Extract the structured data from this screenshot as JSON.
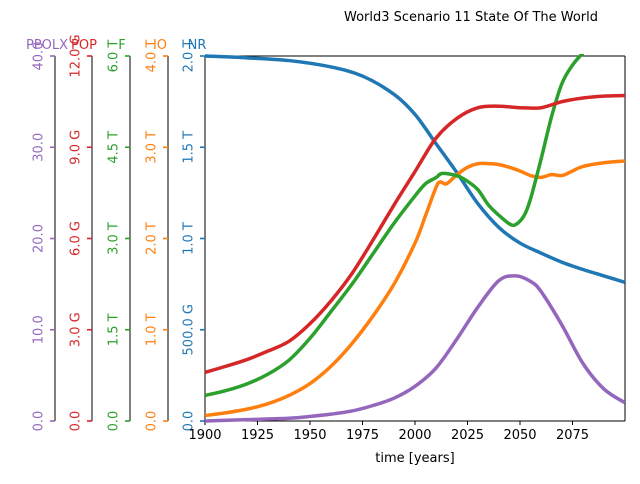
{
  "chart_data": {
    "type": "line",
    "title": "World3 Scenario 11 State Of The World",
    "xlabel": "time [years]",
    "xlim": [
      1900,
      2100
    ],
    "x_ticks": [
      1900,
      1925,
      1950,
      1975,
      2000,
      2025,
      2050,
      2075
    ],
    "x_tick_labels": [
      "1900",
      "1925",
      "1950",
      "1975",
      "2000",
      "2025",
      "2050",
      "2075"
    ],
    "grid": false,
    "legend": "none",
    "axes": [
      {
        "key": "PPOLX",
        "label": "PPOLX",
        "color": "#9467bd",
        "ylim": [
          0,
          40
        ],
        "ticks": [
          0,
          10,
          20,
          30,
          40
        ],
        "tick_labels": [
          "0.0",
          "10.0",
          "20.0",
          "30.0",
          "40.0"
        ]
      },
      {
        "key": "POP",
        "label": "POP",
        "color": "#d62728",
        "ylim": [
          0,
          12
        ],
        "ticks": [
          0,
          3,
          6,
          9,
          12
        ],
        "tick_labels": [
          "0.0",
          "3.0 G",
          "6.0 G",
          "9.0 G",
          "12.0 G"
        ]
      },
      {
        "key": "F",
        "label": "F",
        "color": "#2ca02c",
        "ylim": [
          0,
          6
        ],
        "ticks": [
          0,
          1.5,
          3,
          4.5,
          6
        ],
        "tick_labels": [
          "0.0",
          "1.5 T",
          "3.0 T",
          "4.5 T",
          "6.0 T"
        ]
      },
      {
        "key": "IO",
        "label": "IO",
        "color": "#ff7f0e",
        "ylim": [
          0,
          4
        ],
        "ticks": [
          0,
          1,
          2,
          3,
          4
        ],
        "tick_labels": [
          "0.0",
          "1.0 T",
          "2.0 T",
          "3.0 T",
          "4.0 T"
        ]
      },
      {
        "key": "NR",
        "label": "NR",
        "color": "#1f77b4",
        "ylim": [
          0,
          2
        ],
        "ticks": [
          0,
          0.5,
          1,
          1.5,
          2
        ],
        "tick_labels": [
          "0.0",
          "500.0 G",
          "1.0 T",
          "1.5 T",
          "2.0 T"
        ]
      }
    ],
    "series": [
      {
        "axis": "NR",
        "color": "#1f77b4",
        "x": [
          1900,
          1920,
          1940,
          1960,
          1975,
          1990,
          2000,
          2010,
          2020,
          2030,
          2040,
          2050,
          2060,
          2070,
          2080,
          2090,
          2100
        ],
        "values": [
          2.0,
          1.99,
          1.975,
          1.94,
          1.89,
          1.79,
          1.68,
          1.52,
          1.36,
          1.19,
          1.06,
          0.975,
          0.92,
          0.87,
          0.83,
          0.795,
          0.76
        ]
      },
      {
        "axis": "IO",
        "color": "#ff7f0e",
        "x": [
          1900,
          1910,
          1920,
          1930,
          1940,
          1950,
          1960,
          1970,
          1980,
          1990,
          2000,
          2005,
          2010,
          2012,
          2015,
          2020,
          2025,
          2030,
          2035,
          2040,
          2045,
          2050,
          2055,
          2060,
          2065,
          2070,
          2075,
          2080,
          2090,
          2100
        ],
        "values": [
          0.06,
          0.09,
          0.13,
          0.19,
          0.28,
          0.41,
          0.6,
          0.85,
          1.15,
          1.5,
          1.95,
          2.25,
          2.56,
          2.62,
          2.6,
          2.7,
          2.78,
          2.82,
          2.82,
          2.81,
          2.78,
          2.74,
          2.69,
          2.67,
          2.7,
          2.69,
          2.74,
          2.79,
          2.83,
          2.85
        ]
      },
      {
        "axis": "F",
        "color": "#2ca02c",
        "x": [
          1900,
          1910,
          1920,
          1930,
          1940,
          1950,
          1960,
          1970,
          1980,
          1990,
          2000,
          2005,
          2010,
          2013,
          2020,
          2025,
          2030,
          2035,
          2040,
          2045,
          2048,
          2052,
          2055,
          2060,
          2065,
          2070,
          2075,
          2080,
          2085,
          2090,
          2095,
          2100
        ],
        "values": [
          0.42,
          0.5,
          0.61,
          0.77,
          1.0,
          1.36,
          1.8,
          2.25,
          2.75,
          3.25,
          3.7,
          3.9,
          4.0,
          4.07,
          4.03,
          3.94,
          3.8,
          3.55,
          3.38,
          3.24,
          3.23,
          3.38,
          3.65,
          4.3,
          5.0,
          5.55,
          5.85,
          6.05,
          6.2,
          6.28,
          6.31,
          6.31
        ]
      },
      {
        "axis": "POP",
        "color": "#d62728",
        "x": [
          1900,
          1910,
          1920,
          1930,
          1940,
          1950,
          1960,
          1970,
          1980,
          1990,
          2000,
          2010,
          2020,
          2030,
          2040,
          2050,
          2060,
          2070,
          2080,
          2090,
          2100
        ],
        "values": [
          1.6,
          1.8,
          2.02,
          2.3,
          2.62,
          3.2,
          3.95,
          4.85,
          5.95,
          7.1,
          8.2,
          9.3,
          9.95,
          10.3,
          10.35,
          10.3,
          10.3,
          10.5,
          10.62,
          10.68,
          10.7
        ]
      },
      {
        "axis": "PPOLX",
        "color": "#9467bd",
        "x": [
          1900,
          1920,
          1940,
          1950,
          1960,
          1970,
          1980,
          1990,
          2000,
          2010,
          2020,
          2030,
          2040,
          2048,
          2055,
          2060,
          2070,
          2080,
          2090,
          2100
        ],
        "values": [
          0.0,
          0.15,
          0.3,
          0.5,
          0.75,
          1.1,
          1.7,
          2.5,
          3.8,
          5.8,
          9.0,
          12.5,
          15.4,
          15.9,
          15.3,
          14.2,
          10.5,
          6.3,
          3.5,
          2.0
        ]
      }
    ]
  }
}
